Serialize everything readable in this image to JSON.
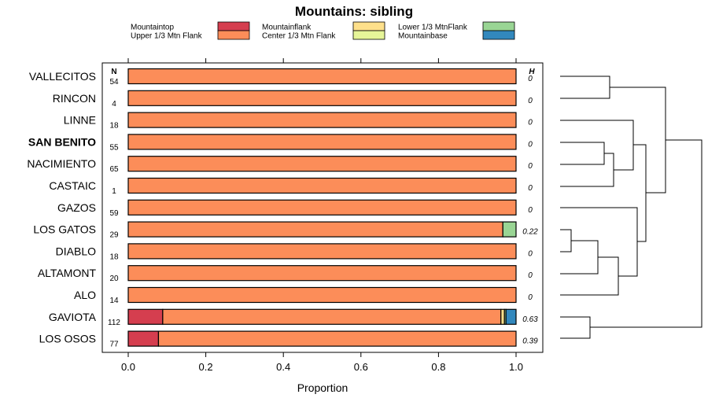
{
  "chart_data": {
    "type": "bar",
    "stacked": true,
    "orientation": "horizontal",
    "title": "Mountains: sibling",
    "xlabel": "Proportion",
    "xlim": [
      0,
      1
    ],
    "xticks": [
      "0.0",
      "0.2",
      "0.4",
      "0.6",
      "0.8",
      "1.0"
    ],
    "n_header": "N",
    "h_header": "H",
    "highlighted_row": "SAN BENITO",
    "legend": [
      {
        "name": "Mountaintop",
        "color": "#d53e4f"
      },
      {
        "name": "Upper 1/3 Mtn Flank",
        "color": "#fc8d59"
      },
      {
        "name": "Mountainflank",
        "color": "#fee08b"
      },
      {
        "name": "Center 1/3 Mtn Flank",
        "color": "#e6f598"
      },
      {
        "name": "Lower 1/3 MtnFlank",
        "color": "#99d594"
      },
      {
        "name": "Mountainbase",
        "color": "#3288bd"
      }
    ],
    "rows": [
      {
        "label": "VALLECITOS",
        "n": "54",
        "h": "0",
        "values": [
          0,
          1,
          0,
          0,
          0,
          0
        ]
      },
      {
        "label": "RINCON",
        "n": "4",
        "h": "0",
        "values": [
          0,
          1,
          0,
          0,
          0,
          0
        ]
      },
      {
        "label": "LINNE",
        "n": "18",
        "h": "0",
        "values": [
          0,
          1,
          0,
          0,
          0,
          0
        ]
      },
      {
        "label": "SAN BENITO",
        "n": "55",
        "h": "0",
        "values": [
          0,
          1,
          0,
          0,
          0,
          0
        ]
      },
      {
        "label": "NACIMIENTO",
        "n": "65",
        "h": "0",
        "values": [
          0,
          1,
          0,
          0,
          0,
          0
        ]
      },
      {
        "label": "CASTAIC",
        "n": "1",
        "h": "0",
        "values": [
          0,
          1,
          0,
          0,
          0,
          0
        ]
      },
      {
        "label": "GAZOS",
        "n": "59",
        "h": "0",
        "values": [
          0,
          1,
          0,
          0,
          0,
          0
        ]
      },
      {
        "label": "LOS GATOS",
        "n": "29",
        "h": "0.22",
        "values": [
          0,
          0.966,
          0,
          0,
          0.034,
          0
        ]
      },
      {
        "label": "DIABLO",
        "n": "18",
        "h": "0",
        "values": [
          0,
          1,
          0,
          0,
          0,
          0
        ]
      },
      {
        "label": "ALTAMONT",
        "n": "20",
        "h": "0",
        "values": [
          0,
          1,
          0,
          0,
          0,
          0
        ]
      },
      {
        "label": "ALO",
        "n": "14",
        "h": "0",
        "values": [
          0,
          1,
          0,
          0,
          0,
          0
        ]
      },
      {
        "label": "GAVIOTA",
        "n": "112",
        "h": "0.63",
        "values": [
          0.089,
          0.872,
          0.009,
          0,
          0.004,
          0.026
        ]
      },
      {
        "label": "LOS OSOS",
        "n": "77",
        "h": "0.39",
        "values": [
          0.078,
          0.922,
          0,
          0,
          0,
          0
        ]
      }
    ]
  }
}
